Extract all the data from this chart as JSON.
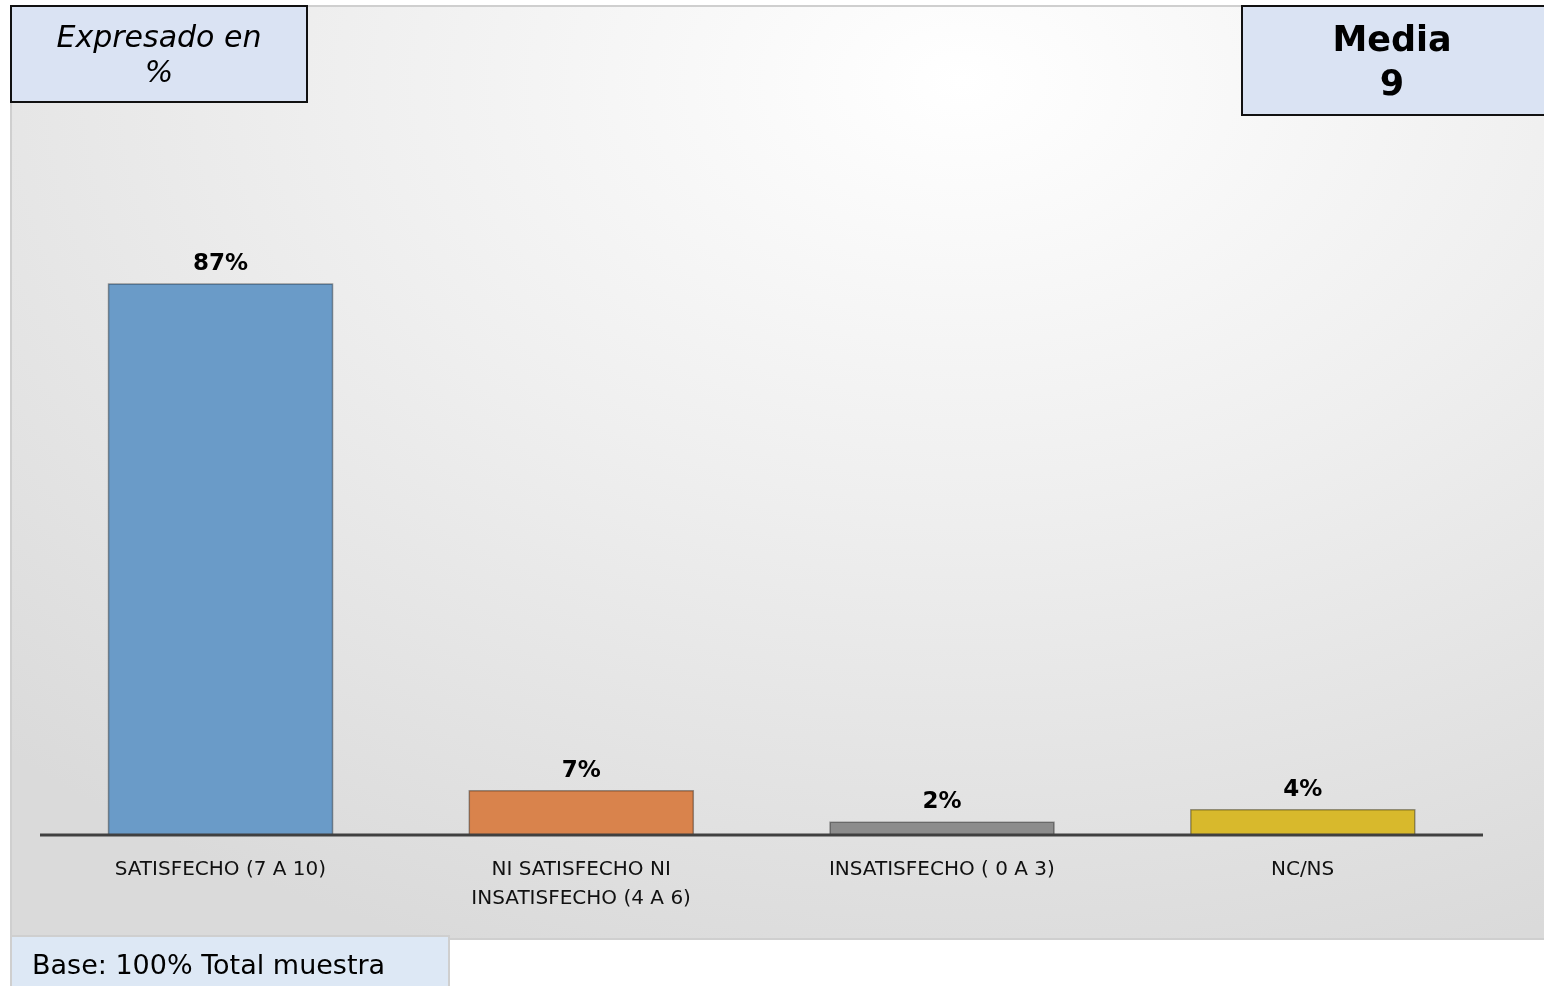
{
  "chart_data": {
    "type": "bar",
    "categories": [
      "SATISFECHO (7 A 10)",
      "NI SATISFECHO NI INSATISFECHO (4 A 6)",
      "INSATISFECHO ( 0 A 3)",
      "NC/NS"
    ],
    "values": [
      87,
      7,
      2,
      4
    ],
    "colors": [
      "#6a9bc8",
      "#d9834c",
      "#8c8c8c",
      "#d8b92c"
    ],
    "value_labels": [
      "87%",
      "7%",
      "2%",
      "4%"
    ],
    "annotations": [
      "Expresado en %",
      "Media 9",
      "Base: 100% Total muestra"
    ]
  }
}
